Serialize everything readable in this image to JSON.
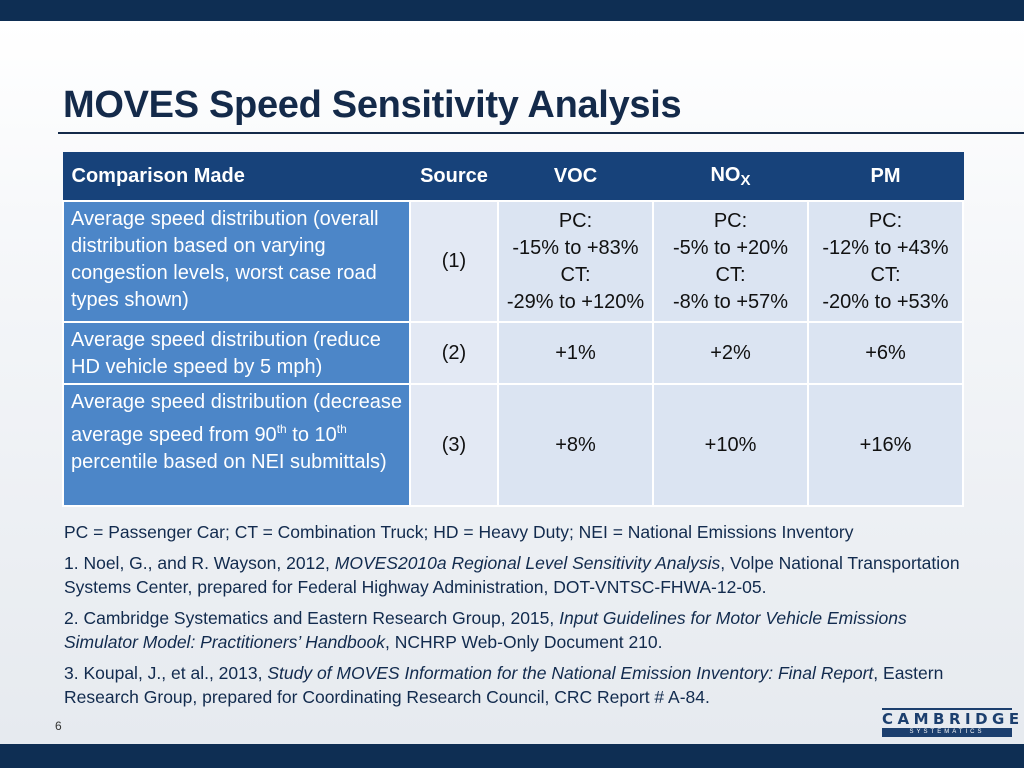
{
  "title": "MOVES Speed Sensitivity Analysis",
  "table": {
    "headers": {
      "comparison": "Comparison Made",
      "source": "Source",
      "voc": "VOC",
      "nox_main": "NO",
      "nox_sub": "X",
      "pm": "PM"
    },
    "rows": [
      {
        "comparison": "Average speed distribution (overall distribution based on varying congestion levels, worst case road types shown)",
        "source": "(1)",
        "voc": [
          "PC:",
          "-15% to +83%",
          "CT:",
          "-29% to +120%"
        ],
        "nox": [
          "PC:",
          "-5% to +20%",
          "CT:",
          "-8% to +57%"
        ],
        "pm": [
          "PC:",
          "-12% to +43%",
          "CT:",
          "-20% to +53%"
        ]
      },
      {
        "comparison": "Average speed distribution (reduce HD vehicle speed by 5 mph)",
        "source": "(2)",
        "voc": "+1%",
        "nox": "+2%",
        "pm": "+6%"
      },
      {
        "comparison_parts": [
          "Average speed distribution (decrease average speed from 90",
          "th",
          " to 10",
          "th",
          " percentile based on NEI submittals)"
        ],
        "source": "(3)",
        "voc": "+8%",
        "nox": "+10%",
        "pm": "+16%"
      }
    ]
  },
  "notes": {
    "legend": "PC = Passenger Car; CT = Combination Truck; HD = Heavy Duty; NEI = National Emissions Inventory",
    "ref1": {
      "prefix": "1.  Noel, G., and R. Wayson, 2012, ",
      "title": "MOVES2010a Regional Level Sensitivity Analysis",
      "suffix": ", Volpe National Transportation Systems Center, prepared for Federal Highway Administration, DOT-VNTSC-FHWA-12-05."
    },
    "ref2": {
      "prefix": "2.  Cambridge Systematics and Eastern Research Group, 2015, ",
      "title": "Input Guidelines for Motor Vehicle Emissions Simulator Model:  Practitioners’ Handbook",
      "suffix": ",  NCHRP Web-Only Document 210."
    },
    "ref3": {
      "prefix": "3.  Koupal, J., et al., 2013, ",
      "title": "Study of MOVES Information for the National Emission Inventory:  Final Report",
      "suffix": ",  Eastern Research Group, prepared for Coordinating Research Council, CRC Report # A-84."
    }
  },
  "page_number": "6",
  "logo": {
    "main": "CAMBRIDGE",
    "sub": "SYSTEMATICS"
  }
}
